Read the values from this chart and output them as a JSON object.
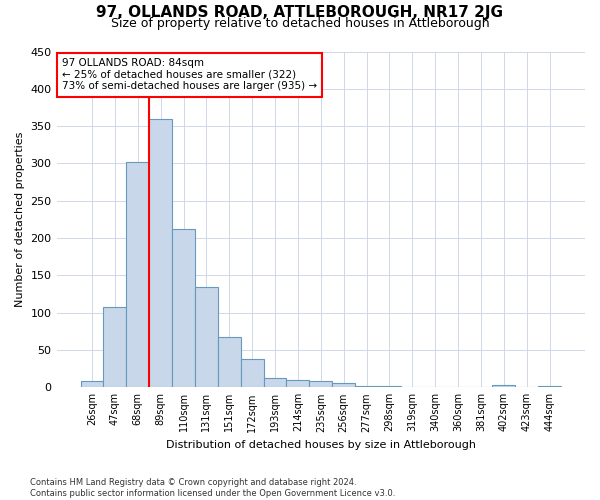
{
  "title": "97, OLLANDS ROAD, ATTLEBOROUGH, NR17 2JG",
  "subtitle": "Size of property relative to detached houses in Attleborough",
  "xlabel": "Distribution of detached houses by size in Attleborough",
  "ylabel": "Number of detached properties",
  "footnote": "Contains HM Land Registry data © Crown copyright and database right 2024.\nContains public sector information licensed under the Open Government Licence v3.0.",
  "bar_labels": [
    "26sqm",
    "47sqm",
    "68sqm",
    "89sqm",
    "110sqm",
    "131sqm",
    "151sqm",
    "172sqm",
    "193sqm",
    "214sqm",
    "235sqm",
    "256sqm",
    "277sqm",
    "298sqm",
    "319sqm",
    "340sqm",
    "360sqm",
    "381sqm",
    "402sqm",
    "423sqm",
    "444sqm"
  ],
  "bar_values": [
    8,
    108,
    302,
    360,
    212,
    135,
    68,
    38,
    13,
    10,
    9,
    6,
    2,
    2,
    0,
    0,
    0,
    0,
    3,
    0,
    2
  ],
  "bar_color": "#c8d8ea",
  "bar_edge_color": "#6699bb",
  "vline_color": "red",
  "vline_x_index": 3,
  "annotation_line1": "97 OLLANDS ROAD: 84sqm",
  "annotation_line2": "← 25% of detached houses are smaller (322)",
  "annotation_line3": "73% of semi-detached houses are larger (935) →",
  "annotation_box_color": "white",
  "annotation_box_edge": "red",
  "ylim": [
    0,
    450
  ],
  "yticks": [
    0,
    50,
    100,
    150,
    200,
    250,
    300,
    350,
    400,
    450
  ],
  "bg_color": "white",
  "grid_color": "#d0d8e8",
  "title_fontsize": 11,
  "subtitle_fontsize": 9,
  "ylabel_fontsize": 8,
  "xlabel_fontsize": 8,
  "tick_fontsize": 8,
  "xtick_fontsize": 7
}
